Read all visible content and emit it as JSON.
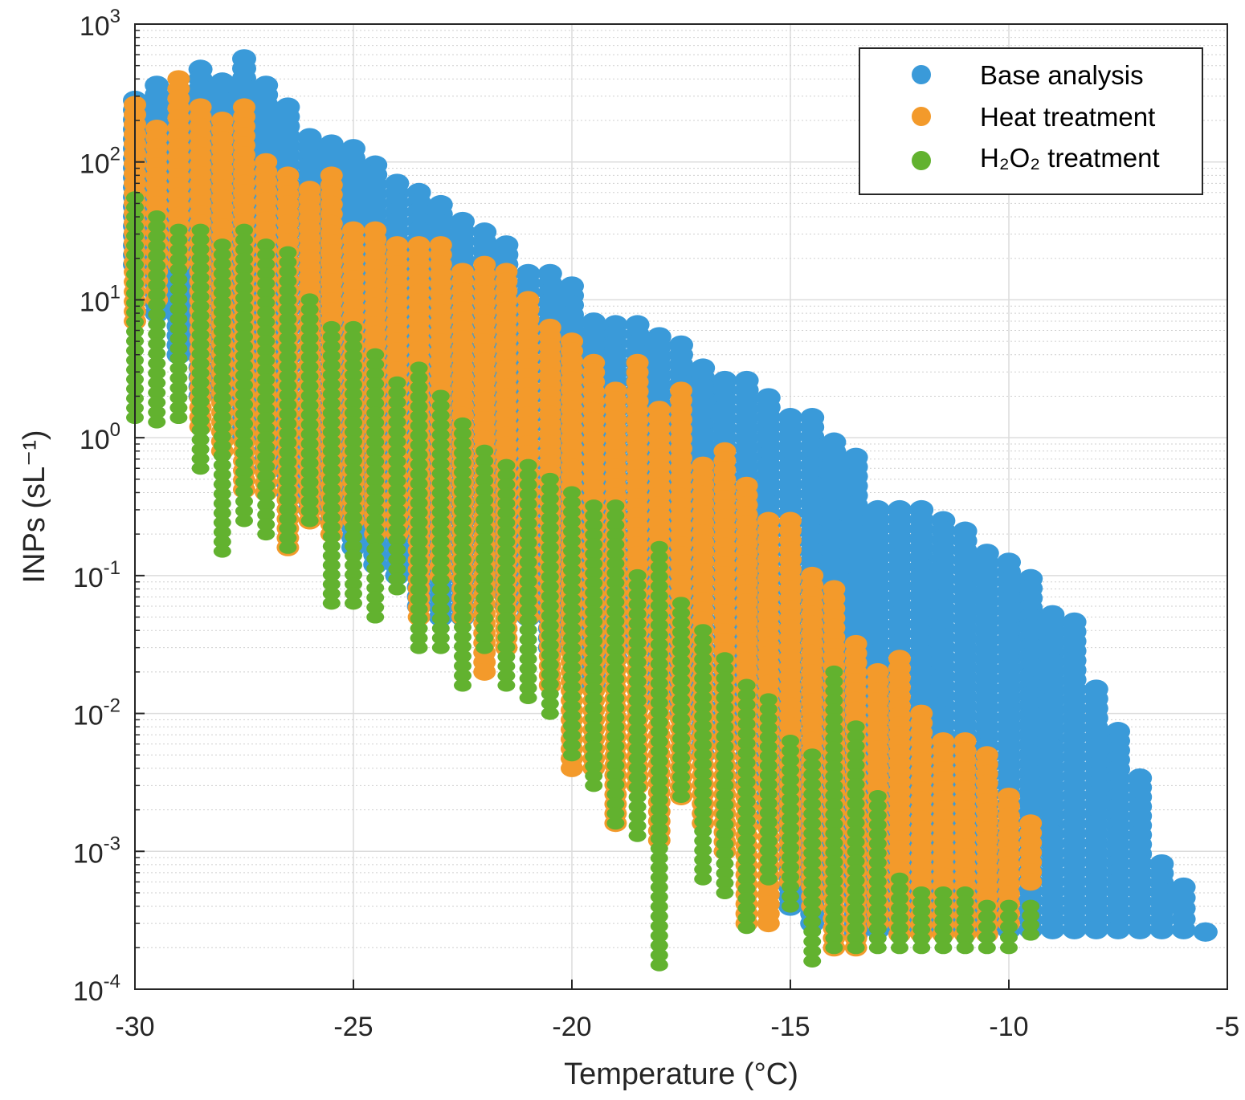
{
  "chart_data": {
    "type": "scatter",
    "title": "",
    "xlabel": "Temperature (°C)",
    "ylabel": "INPs (sL⁻¹)",
    "xlim": [
      -30,
      -5
    ],
    "ylim": [
      0.0001,
      1000
    ],
    "y_scale": "log",
    "grid": "major and minor",
    "legend_position": "top-right",
    "x_ticks": [
      "-30",
      "-25",
      "-20",
      "-15",
      "-10",
      "-5"
    ],
    "y_ticks": {
      "base": "10",
      "exponents": [
        "3",
        "2",
        "1",
        "0",
        "-1",
        "-2",
        "-3",
        "-4"
      ]
    },
    "series": [
      {
        "name": "Base analysis",
        "color": "#3a9ad9",
        "columns": [
          {
            "x": -30,
            "y_min": 18,
            "y_max": 280
          },
          {
            "x": -29.5,
            "y_min": 8,
            "y_max": 360
          },
          {
            "x": -29,
            "y_min": 4,
            "y_max": 300
          },
          {
            "x": -28.5,
            "y_min": 2,
            "y_max": 470
          },
          {
            "x": -28,
            "y_min": 2,
            "y_max": 380
          },
          {
            "x": -27.5,
            "y_min": 1,
            "y_max": 560
          },
          {
            "x": -27,
            "y_min": 0.6,
            "y_max": 360
          },
          {
            "x": -26.5,
            "y_min": 0.4,
            "y_max": 250
          },
          {
            "x": -26,
            "y_min": 0.3,
            "y_max": 150
          },
          {
            "x": -25.5,
            "y_min": 0.25,
            "y_max": 135
          },
          {
            "x": -25,
            "y_min": 0.16,
            "y_max": 125
          },
          {
            "x": -24.5,
            "y_min": 0.12,
            "y_max": 95
          },
          {
            "x": -24,
            "y_min": 0.1,
            "y_max": 70
          },
          {
            "x": -23.5,
            "y_min": 0.06,
            "y_max": 60
          },
          {
            "x": -23,
            "y_min": 0.05,
            "y_max": 49
          },
          {
            "x": -22.5,
            "y_min": 0.05,
            "y_max": 37
          },
          {
            "x": -22,
            "y_min": 0.08,
            "y_max": 31
          },
          {
            "x": -21.5,
            "y_min": 0.06,
            "y_max": 25
          },
          {
            "x": -21,
            "y_min": 0.05,
            "y_max": 15.5
          },
          {
            "x": -20.5,
            "y_min": 0.03,
            "y_max": 15.5
          },
          {
            "x": -20,
            "y_min": 0.04,
            "y_max": 12.6
          },
          {
            "x": -19.5,
            "y_min": 0.016,
            "y_max": 6.9
          },
          {
            "x": -19,
            "y_min": 0.025,
            "y_max": 6.6
          },
          {
            "x": -18.5,
            "y_min": 0.03,
            "y_max": 6.6
          },
          {
            "x": -18,
            "y_min": 0.012,
            "y_max": 5.4
          },
          {
            "x": -17.5,
            "y_min": 0.01,
            "y_max": 4.7
          },
          {
            "x": -17,
            "y_min": 0.005,
            "y_max": 3.2
          },
          {
            "x": -16.5,
            "y_min": 0.006,
            "y_max": 2.6
          },
          {
            "x": -16,
            "y_min": 0.003,
            "y_max": 2.6
          },
          {
            "x": -15.5,
            "y_min": 0.0016,
            "y_max": 1.95
          },
          {
            "x": -15,
            "y_min": 0.0004,
            "y_max": 1.4
          },
          {
            "x": -14.5,
            "y_min": 0.0003,
            "y_max": 1.4
          },
          {
            "x": -14,
            "y_min": 0.0005,
            "y_max": 0.93
          },
          {
            "x": -13.5,
            "y_min": 0.00025,
            "y_max": 0.72
          },
          {
            "x": -13,
            "y_min": 0.00027,
            "y_max": 0.3
          },
          {
            "x": -12.5,
            "y_min": 0.00027,
            "y_max": 0.3
          },
          {
            "x": -12,
            "y_min": 0.00027,
            "y_max": 0.3
          },
          {
            "x": -11.5,
            "y_min": 0.00027,
            "y_max": 0.25
          },
          {
            "x": -11,
            "y_min": 0.00027,
            "y_max": 0.21
          },
          {
            "x": -10.5,
            "y_min": 0.00027,
            "y_max": 0.145
          },
          {
            "x": -10,
            "y_min": 0.00027,
            "y_max": 0.125
          },
          {
            "x": -9.5,
            "y_min": 0.00027,
            "y_max": 0.095
          },
          {
            "x": -9,
            "y_min": 0.00027,
            "y_max": 0.052
          },
          {
            "x": -8.5,
            "y_min": 0.00027,
            "y_max": 0.046
          },
          {
            "x": -8,
            "y_min": 0.00027,
            "y_max": 0.015
          },
          {
            "x": -7.5,
            "y_min": 0.00027,
            "y_max": 0.0074
          },
          {
            "x": -7,
            "y_min": 0.00027,
            "y_max": 0.0034
          },
          {
            "x": -6.5,
            "y_min": 0.00027,
            "y_max": 0.00081
          },
          {
            "x": -6,
            "y_min": 0.00027,
            "y_max": 0.00055
          },
          {
            "x": -5.5,
            "y_min": 0.00026,
            "y_max": 0.00026
          }
        ]
      },
      {
        "name": "Heat treatment",
        "color": "#f39a2b",
        "columns": [
          {
            "x": -30,
            "y_min": 7,
            "y_max": 260
          },
          {
            "x": -29.5,
            "y_min": 10,
            "y_max": 175
          },
          {
            "x": -29,
            "y_min": 18,
            "y_max": 400
          },
          {
            "x": -28.5,
            "y_min": 1.2,
            "y_max": 250
          },
          {
            "x": -28,
            "y_min": 0.8,
            "y_max": 200
          },
          {
            "x": -27.5,
            "y_min": 0.42,
            "y_max": 250
          },
          {
            "x": -27,
            "y_min": 0.4,
            "y_max": 100
          },
          {
            "x": -26.5,
            "y_min": 0.16,
            "y_max": 80
          },
          {
            "x": -26,
            "y_min": 0.25,
            "y_max": 63
          },
          {
            "x": -25.5,
            "y_min": 0.2,
            "y_max": 80
          },
          {
            "x": -25,
            "y_min": 0.25,
            "y_max": 32
          },
          {
            "x": -24.5,
            "y_min": 0.2,
            "y_max": 32
          },
          {
            "x": -24,
            "y_min": 0.2,
            "y_max": 25
          },
          {
            "x": -23.5,
            "y_min": 0.05,
            "y_max": 25
          },
          {
            "x": -23,
            "y_min": 0.1,
            "y_max": 25
          },
          {
            "x": -22.5,
            "y_min": 0.05,
            "y_max": 16
          },
          {
            "x": -22,
            "y_min": 0.02,
            "y_max": 18
          },
          {
            "x": -21.5,
            "y_min": 0.03,
            "y_max": 16
          },
          {
            "x": -21,
            "y_min": 0.05,
            "y_max": 10
          },
          {
            "x": -20.5,
            "y_min": 0.016,
            "y_max": 6.3
          },
          {
            "x": -20,
            "y_min": 0.004,
            "y_max": 5
          },
          {
            "x": -19.5,
            "y_min": 0.004,
            "y_max": 3.5
          },
          {
            "x": -19,
            "y_min": 0.0016,
            "y_max": 2.2
          },
          {
            "x": -18.5,
            "y_min": 0.003,
            "y_max": 3.5
          },
          {
            "x": -18,
            "y_min": 0.0012,
            "y_max": 1.6
          },
          {
            "x": -17.5,
            "y_min": 0.0025,
            "y_max": 2.2
          },
          {
            "x": -17,
            "y_min": 0.0016,
            "y_max": 0.63
          },
          {
            "x": -16.5,
            "y_min": 0.001,
            "y_max": 0.8
          },
          {
            "x": -16,
            "y_min": 0.0003,
            "y_max": 0.45
          },
          {
            "x": -15.5,
            "y_min": 0.0003,
            "y_max": 0.25
          },
          {
            "x": -15,
            "y_min": 0.0006,
            "y_max": 0.25
          },
          {
            "x": -14.5,
            "y_min": 0.0004,
            "y_max": 0.1
          },
          {
            "x": -14,
            "y_min": 0.0002,
            "y_max": 0.08
          },
          {
            "x": -13.5,
            "y_min": 0.0002,
            "y_max": 0.032
          },
          {
            "x": -13,
            "y_min": 0.0003,
            "y_max": 0.02
          },
          {
            "x": -12.5,
            "y_min": 0.00025,
            "y_max": 0.025
          },
          {
            "x": -12,
            "y_min": 0.00025,
            "y_max": 0.01
          },
          {
            "x": -11.5,
            "y_min": 0.00025,
            "y_max": 0.0063
          },
          {
            "x": -11,
            "y_min": 0.00025,
            "y_max": 0.0063
          },
          {
            "x": -10.5,
            "y_min": 0.00025,
            "y_max": 0.005
          },
          {
            "x": -10,
            "y_min": 0.0003,
            "y_max": 0.0025
          },
          {
            "x": -9.5,
            "y_min": 0.0006,
            "y_max": 0.0016
          }
        ]
      },
      {
        "name": "H₂O₂ treatment",
        "color": "#62b22f",
        "columns": [
          {
            "x": -30,
            "y_min": 1.4,
            "y_max": 55
          },
          {
            "x": -29.5,
            "y_min": 1.3,
            "y_max": 40
          },
          {
            "x": -29,
            "y_min": 1.4,
            "y_max": 32
          },
          {
            "x": -28.5,
            "y_min": 0.6,
            "y_max": 32
          },
          {
            "x": -28,
            "y_min": 0.15,
            "y_max": 25
          },
          {
            "x": -27.5,
            "y_min": 0.25,
            "y_max": 32
          },
          {
            "x": -27,
            "y_min": 0.2,
            "y_max": 25
          },
          {
            "x": -26.5,
            "y_min": 0.16,
            "y_max": 22
          },
          {
            "x": -26,
            "y_min": 0.25,
            "y_max": 10
          },
          {
            "x": -25.5,
            "y_min": 0.063,
            "y_max": 6.3
          },
          {
            "x": -25,
            "y_min": 0.063,
            "y_max": 6.3
          },
          {
            "x": -24.5,
            "y_min": 0.05,
            "y_max": 4
          },
          {
            "x": -24,
            "y_min": 0.08,
            "y_max": 2.5
          },
          {
            "x": -23.5,
            "y_min": 0.03,
            "y_max": 3.2
          },
          {
            "x": -23,
            "y_min": 0.03,
            "y_max": 2
          },
          {
            "x": -22.5,
            "y_min": 0.016,
            "y_max": 1.26
          },
          {
            "x": -22,
            "y_min": 0.03,
            "y_max": 0.8
          },
          {
            "x": -21.5,
            "y_min": 0.016,
            "y_max": 0.63
          },
          {
            "x": -21,
            "y_min": 0.013,
            "y_max": 0.63
          },
          {
            "x": -20.5,
            "y_min": 0.01,
            "y_max": 0.5
          },
          {
            "x": -20,
            "y_min": 0.005,
            "y_max": 0.4
          },
          {
            "x": -19.5,
            "y_min": 0.003,
            "y_max": 0.32
          },
          {
            "x": -19,
            "y_min": 0.0016,
            "y_max": 0.32
          },
          {
            "x": -18.5,
            "y_min": 0.0013,
            "y_max": 0.1
          },
          {
            "x": -18,
            "y_min": 0.00015,
            "y_max": 0.16
          },
          {
            "x": -17.5,
            "y_min": 0.0025,
            "y_max": 0.063
          },
          {
            "x": -17,
            "y_min": 0.00063,
            "y_max": 0.04
          },
          {
            "x": -16.5,
            "y_min": 0.0005,
            "y_max": 0.025
          },
          {
            "x": -16,
            "y_min": 0.00028,
            "y_max": 0.016
          },
          {
            "x": -15.5,
            "y_min": 0.00063,
            "y_max": 0.0126
          },
          {
            "x": -15,
            "y_min": 0.0004,
            "y_max": 0.0063
          },
          {
            "x": -14.5,
            "y_min": 0.00016,
            "y_max": 0.005
          },
          {
            "x": -14,
            "y_min": 0.0002,
            "y_max": 0.02
          },
          {
            "x": -13.5,
            "y_min": 0.0002,
            "y_max": 0.008
          },
          {
            "x": -13,
            "y_min": 0.0002,
            "y_max": 0.0025
          },
          {
            "x": -12.5,
            "y_min": 0.0002,
            "y_max": 0.00063
          },
          {
            "x": -12,
            "y_min": 0.0002,
            "y_max": 0.0005
          },
          {
            "x": -11.5,
            "y_min": 0.0002,
            "y_max": 0.0005
          },
          {
            "x": -11,
            "y_min": 0.0002,
            "y_max": 0.0005
          },
          {
            "x": -10.5,
            "y_min": 0.0002,
            "y_max": 0.0004
          },
          {
            "x": -10,
            "y_min": 0.0002,
            "y_max": 0.0004
          },
          {
            "x": -9.5,
            "y_min": 0.00025,
            "y_max": 0.0004
          }
        ]
      }
    ]
  }
}
